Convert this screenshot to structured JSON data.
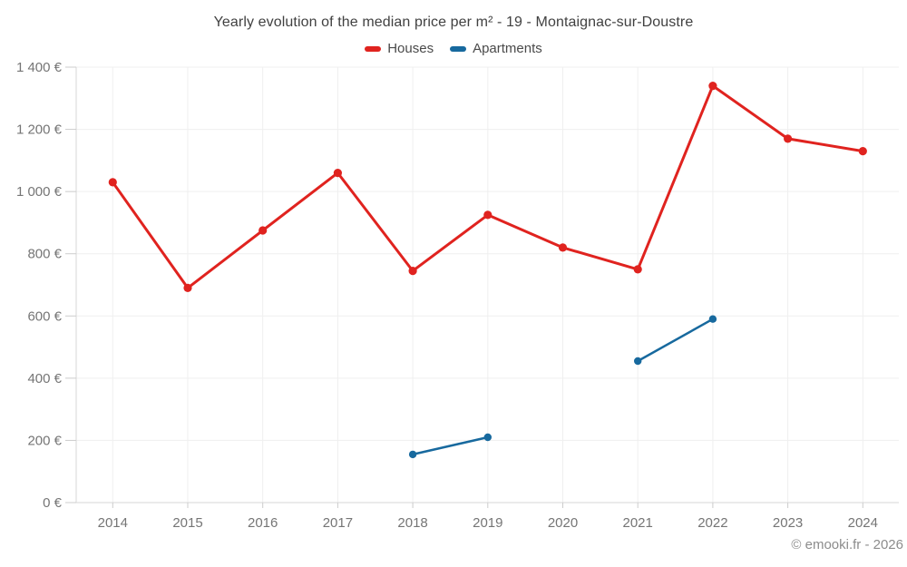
{
  "header": {
    "title": "Yearly evolution of the median price per m² - 19 - Montaignac-sur-Doustre"
  },
  "legend": {
    "items": [
      {
        "label": "Houses",
        "color": "#e0231f"
      },
      {
        "label": "Apartments",
        "color": "#17699e"
      }
    ]
  },
  "chart_data": {
    "type": "line",
    "title": "Yearly evolution of the median price per m² - 19 - Montaignac-sur-Doustre",
    "x": [
      2014,
      2015,
      2016,
      2017,
      2018,
      2019,
      2020,
      2021,
      2022,
      2023,
      2024
    ],
    "series": [
      {
        "name": "Houses",
        "color": "#e0231f",
        "values": [
          1030,
          690,
          875,
          1060,
          745,
          925,
          820,
          750,
          1340,
          1170,
          1130
        ]
      },
      {
        "name": "Apartments",
        "color": "#17699e",
        "values": [
          null,
          null,
          null,
          null,
          155,
          210,
          null,
          455,
          590,
          null,
          null
        ]
      }
    ],
    "xlabel": "",
    "ylabel": "",
    "ylim": [
      0,
      1400
    ],
    "yticks": [
      {
        "value": 0,
        "label": "0 €"
      },
      {
        "value": 200,
        "label": "200 €"
      },
      {
        "value": 400,
        "label": "400 €"
      },
      {
        "value": 600,
        "label": "600 €"
      },
      {
        "value": 800,
        "label": "800 €"
      },
      {
        "value": 1000,
        "label": "1 000 €"
      },
      {
        "value": 1200,
        "label": "1 200 €"
      },
      {
        "value": 1400,
        "label": "1 400 €"
      }
    ],
    "grid": true,
    "legend_position": "top"
  },
  "footer": {
    "credit": "© emooki.fr - 2026"
  },
  "style": {
    "background": "#ffffff",
    "grid": "#efefef",
    "axis": "#d7d7d7",
    "tick": "#cccccc",
    "axis_label": "#757575",
    "title_color": "#414141",
    "legend_text": "#4a4a4a",
    "credit_color": "#8c8c8c"
  }
}
